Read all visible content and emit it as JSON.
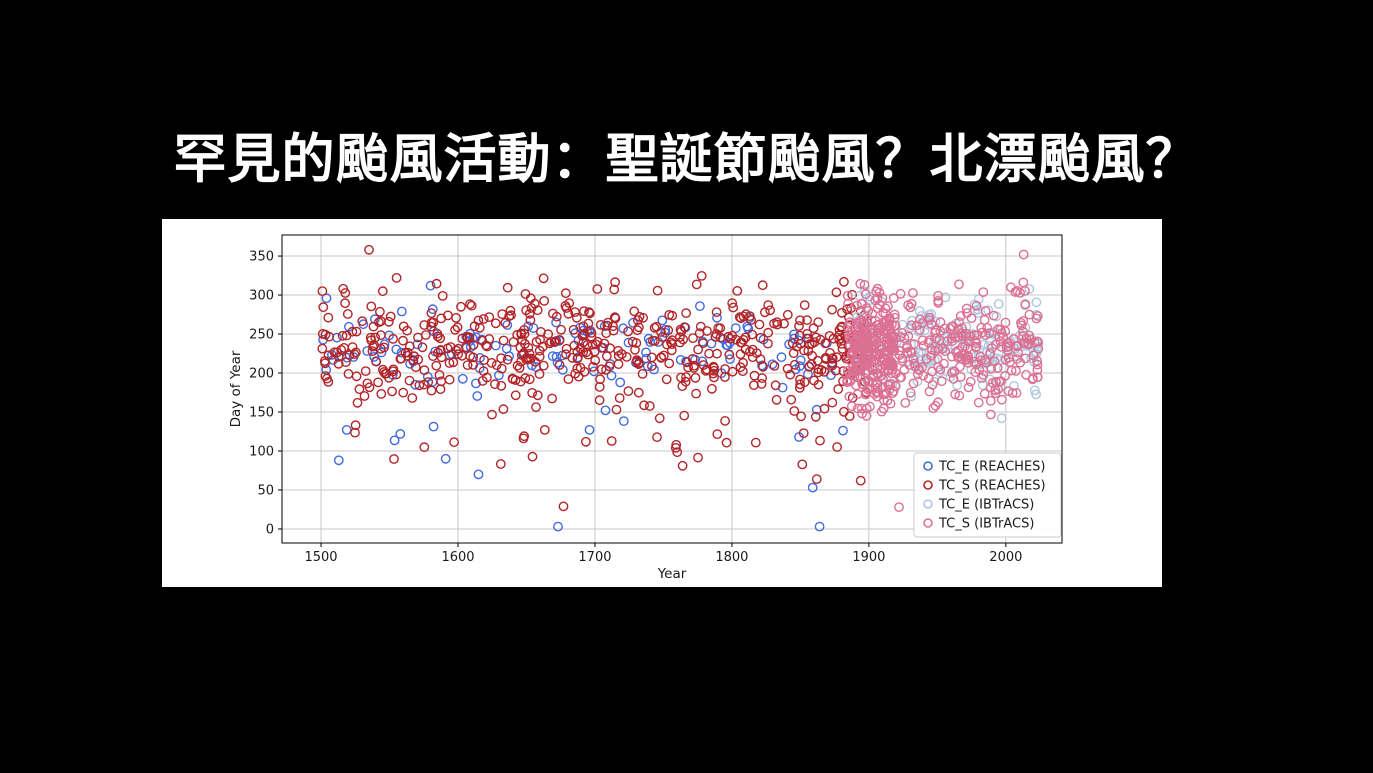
{
  "page": {
    "background": "#000000",
    "panel_background": "#ffffff"
  },
  "title": {
    "text": "罕見的颱風活動：聖誕節颱風？北漂颱風？"
  },
  "chart_data": {
    "type": "scatter",
    "title": "",
    "xlabel": "Year",
    "ylabel": "Day of Year",
    "xlim": [
      1471.5,
      2041
    ],
    "ylim": [
      -18,
      377
    ],
    "x_ticks": [
      1500,
      1600,
      1700,
      1800,
      1900,
      2000
    ],
    "y_ticks": [
      0,
      50,
      100,
      150,
      200,
      250,
      300,
      350
    ],
    "grid": true,
    "grid_color": "#c8c8c8",
    "axis_color": "#000000",
    "tick_label_color": "#1a1a1a",
    "legend": {
      "position": "lower right",
      "border_color": "#cccccc",
      "background": "#ffffff"
    },
    "marker": {
      "shape": "open-circle",
      "radius": 4.2,
      "stroke_width": 1.4
    },
    "series": [
      {
        "name": "TC_E (REACHES)",
        "color": "#4169E1",
        "distributions": [
          {
            "x_range": [
              1500,
              1898
            ],
            "count": 135,
            "day_mean": 229,
            "day_std": 23,
            "day_range": [
              160,
              300
            ]
          },
          {
            "x_range": [
              1500,
              1898
            ],
            "count": 7,
            "day_mean": 130,
            "day_std": 14,
            "day_range": [
              100,
              155
            ]
          }
        ],
        "outlier_points": [
          [
            1513,
            88
          ],
          [
            1591,
            90
          ],
          [
            1615,
            70
          ],
          [
            1673,
            3
          ],
          [
            1864,
            3
          ],
          [
            1859,
            53
          ],
          [
            1580,
            312
          ],
          [
            1504,
            296
          ],
          [
            1696,
            127
          ],
          [
            1849,
            118
          ],
          [
            1862,
            153
          ]
        ]
      },
      {
        "name": "TC_S (REACHES)",
        "color": "#B22428",
        "distributions": [
          {
            "x_range": [
              1500,
              1898
            ],
            "count": 510,
            "day_mean": 230,
            "day_std": 36,
            "day_range": [
              148,
              325
            ]
          },
          {
            "x_range": [
              1500,
              1895
            ],
            "count": 30,
            "day_mean": 122,
            "day_std": 22,
            "day_range": [
              75,
              147
            ]
          },
          {
            "x_range": [
              1872,
              1900
            ],
            "count": 45,
            "day_mean": 233,
            "day_std": 38,
            "day_range": [
              150,
              320
            ]
          }
        ],
        "outlier_points": [
          [
            1535,
            358
          ],
          [
            1677,
            29
          ],
          [
            1862,
            64
          ],
          [
            1894,
            62
          ],
          [
            1764,
            81
          ],
          [
            1759,
            104
          ]
        ]
      },
      {
        "name": "TC_E (IBTrACS)",
        "color": "#AEC6E0",
        "distributions": [
          {
            "x_range": [
              1890,
              2024
            ],
            "count": 165,
            "day_mean": 234,
            "day_std": 28,
            "day_range": [
              168,
              308
            ]
          }
        ],
        "outlier_points": [
          [
            1997,
            142
          ]
        ]
      },
      {
        "name": "TC_S (IBTrACS)",
        "color": "#DB7093",
        "distributions": [
          {
            "x_range": [
              1884,
              2024
            ],
            "count": 290,
            "day_mean": 227,
            "day_std": 33,
            "day_range": [
              145,
              318
            ]
          },
          {
            "x_range": [
              1884,
              1920
            ],
            "count": 200,
            "day_mean": 228,
            "day_std": 34,
            "day_range": [
              148,
              312
            ]
          },
          {
            "x_range": [
              1950,
              2024
            ],
            "count": 12,
            "day_mean": 300,
            "day_std": 8,
            "day_range": [
              286,
              318
            ]
          }
        ],
        "outlier_points": [
          [
            1922,
            28
          ],
          [
            2013,
            352
          ],
          [
            1947,
            155
          ]
        ]
      }
    ]
  }
}
